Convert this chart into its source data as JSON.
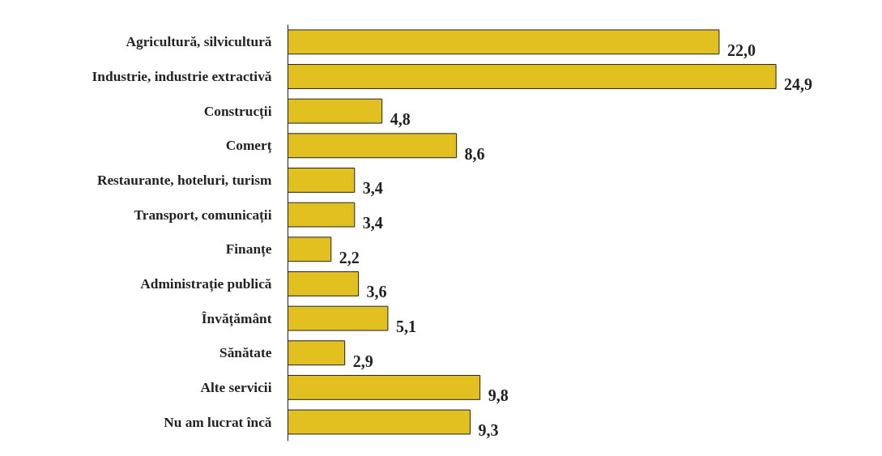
{
  "chart_data": {
    "type": "bar",
    "orientation": "horizontal",
    "categories": [
      "Agricultură, silvicultură",
      "Industrie, industrie extractivă",
      "Construcții",
      "Comerț",
      "Restaurante, hoteluri, turism",
      "Transport, comunicații",
      "Finanțe",
      "Administrație publică",
      "Învățământ",
      "Sănătate",
      "Alte servicii",
      "Nu am lucrat încă"
    ],
    "values": [
      22.0,
      24.9,
      4.8,
      8.6,
      3.4,
      3.4,
      2.2,
      3.6,
      5.1,
      2.9,
      9.8,
      9.3
    ],
    "value_labels": [
      "22,0",
      "24,9",
      "4,8",
      "8,6",
      "3,4",
      "3,4",
      "2,2",
      "3,6",
      "5,1",
      "2,9",
      "9,8",
      "9,3"
    ],
    "color": "#e2c020"
  }
}
